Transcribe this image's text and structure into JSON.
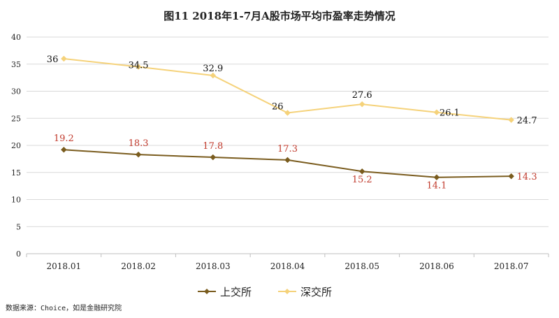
{
  "chart_data": {
    "type": "line",
    "title": "图11  2018年1-7月A股市场平均市盈率走势情况",
    "categories": [
      "2018.01",
      "2018.02",
      "2018.03",
      "2018.04",
      "2018.05",
      "2018.06",
      "2018.07"
    ],
    "ylim": [
      0,
      40
    ],
    "yticks": [
      0,
      5,
      10,
      15,
      20,
      25,
      30,
      35,
      40
    ],
    "grid": true,
    "legend_position": "bottom",
    "series": [
      {
        "name": "上交所",
        "values": [
          19.2,
          18.3,
          17.8,
          17.3,
          15.2,
          14.1,
          14.3
        ],
        "color": "#7a5c1e",
        "label_color": "#c0392b"
      },
      {
        "name": "深交所",
        "values": [
          36,
          34.5,
          32.9,
          26,
          27.6,
          26.1,
          24.7
        ],
        "color": "#f5d27a",
        "label_color": "#111111"
      }
    ]
  },
  "source": "数据来源：Choice，如是金融研究院"
}
